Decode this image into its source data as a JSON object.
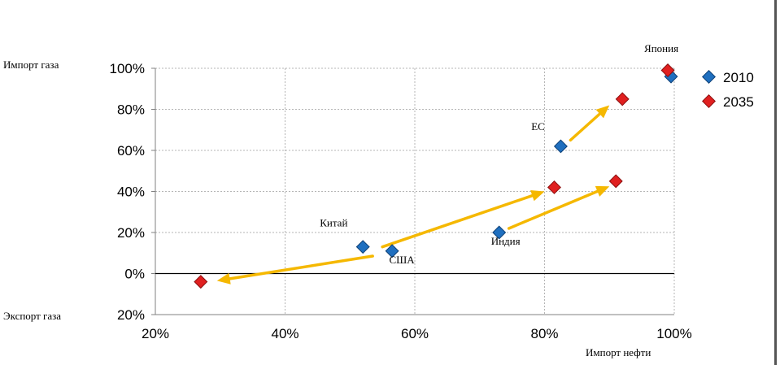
{
  "chart_data": {
    "type": "scatter",
    "title": "",
    "xlabel": "Импорт нефти",
    "ylabel_top": "Импорт газа",
    "ylabel_bottom": "Экспорт газа",
    "xlim": [
      20,
      100
    ],
    "ylim": [
      -20,
      100
    ],
    "x_ticks": [
      {
        "value": 20,
        "label": "20%"
      },
      {
        "value": 40,
        "label": "40%"
      },
      {
        "value": 60,
        "label": "60%"
      },
      {
        "value": 80,
        "label": "80%"
      },
      {
        "value": 100,
        "label": "100%"
      }
    ],
    "y_ticks": [
      {
        "value": 100,
        "label": "100%"
      },
      {
        "value": 80,
        "label": "80%"
      },
      {
        "value": 60,
        "label": "60%"
      },
      {
        "value": 40,
        "label": "40%"
      },
      {
        "value": 20,
        "label": "20%"
      },
      {
        "value": 0,
        "label": "0%"
      },
      {
        "value": -20,
        "label": "20%"
      }
    ],
    "grid": true,
    "legend_position": "right",
    "series": [
      {
        "name": "2010",
        "color": "#1f6fbf",
        "points": [
          {
            "region": "США",
            "x": 56.5,
            "y": 11
          },
          {
            "region": "Китай",
            "x": 52,
            "y": 13
          },
          {
            "region": "Индия",
            "x": 73,
            "y": 20
          },
          {
            "region": "ЕС",
            "x": 82.5,
            "y": 62
          },
          {
            "region": "Япония",
            "x": 99.5,
            "y": 96
          }
        ]
      },
      {
        "name": "2035",
        "color": "#e02020",
        "points": [
          {
            "region": "США",
            "x": 27,
            "y": -4
          },
          {
            "region": "Китай",
            "x": 81.5,
            "y": 42
          },
          {
            "region": "Индия",
            "x": 91,
            "y": 45
          },
          {
            "region": "ЕС",
            "x": 92,
            "y": 85
          },
          {
            "region": "Япония",
            "x": 99,
            "y": 99
          }
        ]
      }
    ],
    "annotations": [
      {
        "text": "Япония",
        "x": 98,
        "y": 108
      },
      {
        "text": "ЕС",
        "x": 79,
        "y": 70
      },
      {
        "text": "Китай",
        "x": 47.5,
        "y": 23
      },
      {
        "text": "Индия",
        "x": 74,
        "y": 14
      },
      {
        "text": "США",
        "x": 58,
        "y": 5
      }
    ],
    "arrows": [
      {
        "from": [
          55,
          13
        ],
        "to": [
          80,
          40
        ]
      },
      {
        "from": [
          53.5,
          8.5
        ],
        "to": [
          29.5,
          -3.5
        ]
      },
      {
        "from": [
          74.5,
          22
        ],
        "to": [
          90,
          42.5
        ]
      },
      {
        "from": [
          84,
          65
        ],
        "to": [
          90,
          82
        ]
      }
    ],
    "arrow_color": "#f5b800"
  }
}
